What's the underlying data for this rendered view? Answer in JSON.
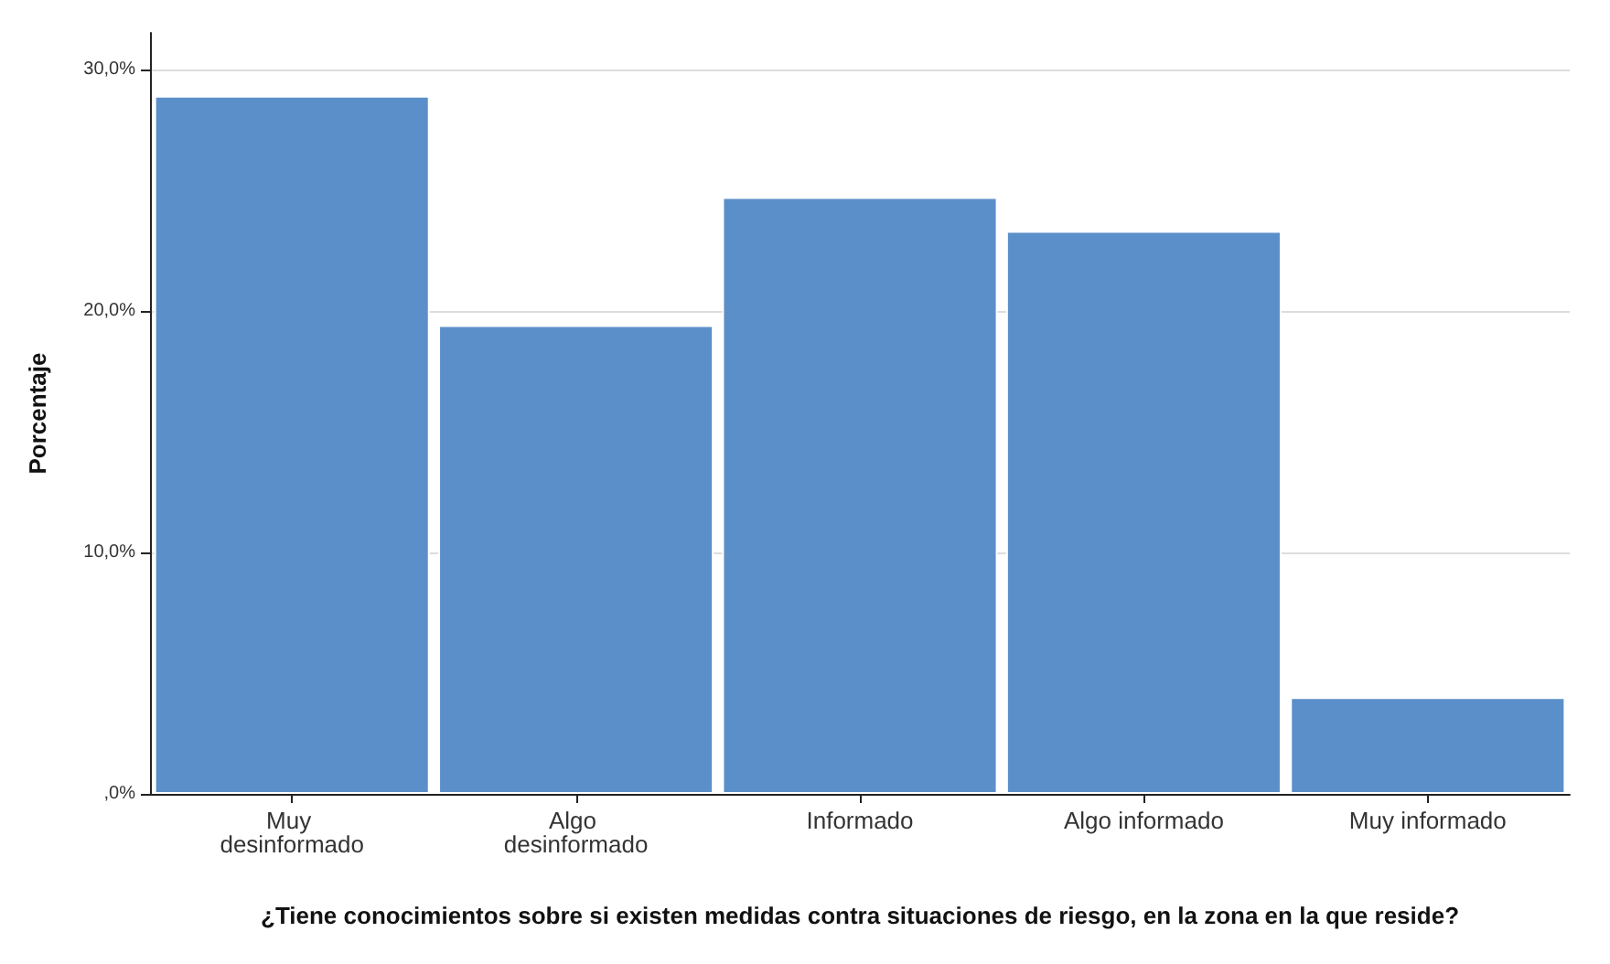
{
  "chart_data": {
    "type": "bar",
    "xlabel": "¿Tiene conocimientos sobre si existen medidas contra situaciones de riesgo, en la zona en la que reside?",
    "ylabel": "Porcentaje",
    "categories": [
      "Muy desinformado",
      "Algo desinformado",
      "Informado",
      "Algo informado",
      "Muy informado"
    ],
    "values": [
      28.9,
      19.4,
      24.7,
      23.3,
      4.0
    ],
    "color": "#5b8fc9",
    "ylim": [
      0,
      31.5
    ],
    "yticks": [
      {
        "value": 0,
        "label": ",0%"
      },
      {
        "value": 10,
        "label": "10,0%"
      },
      {
        "value": 20,
        "label": "20,0%"
      },
      {
        "value": 30,
        "label": "30,0%"
      }
    ],
    "grid": "y"
  }
}
